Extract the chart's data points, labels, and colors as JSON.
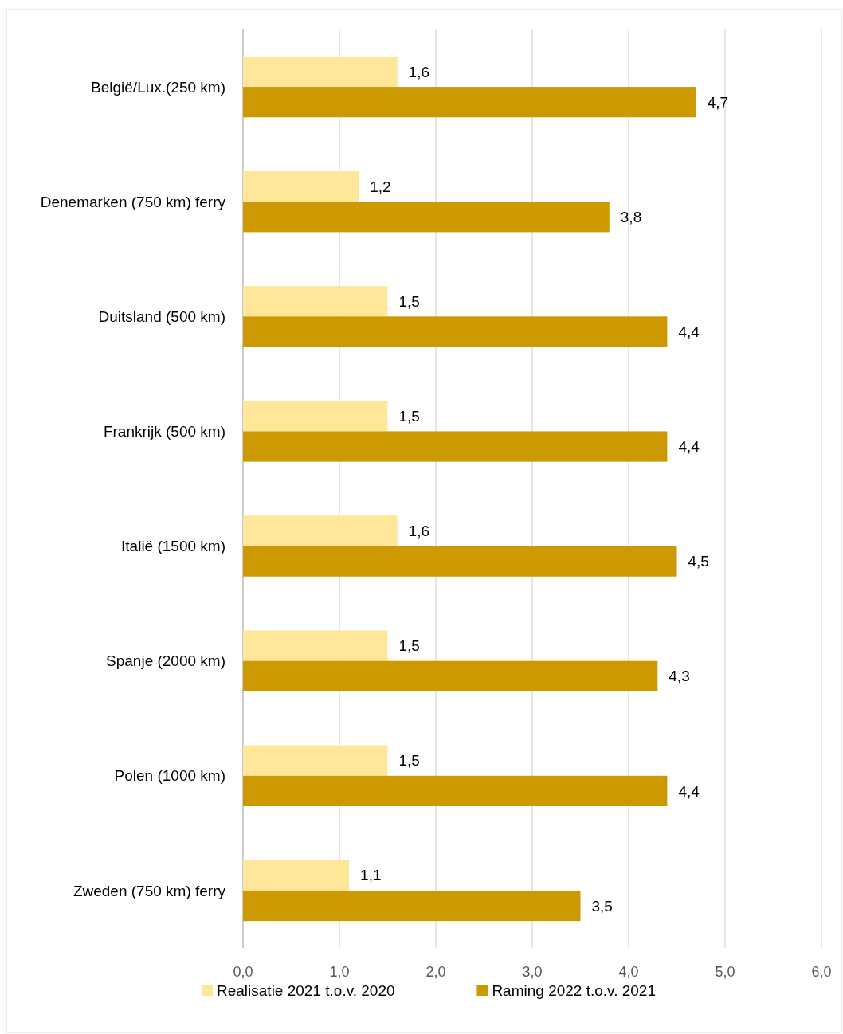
{
  "chart_data": {
    "type": "bar",
    "orientation": "horizontal",
    "categories": [
      "België/Lux.(250 km)",
      "Denemarken (750 km) ferry",
      "Duitsland (500 km)",
      "Frankrijk (500 km)",
      "Italië (1500 km)",
      "Spanje (2000 km)",
      "Polen (1000 km)",
      "Zweden (750 km) ferry"
    ],
    "series": [
      {
        "name": "Realisatie 2021 t.o.v. 2020",
        "color": "#ffe699",
        "values": [
          1.6,
          1.2,
          1.5,
          1.5,
          1.6,
          1.5,
          1.5,
          1.1
        ],
        "value_labels": [
          "1,6",
          "1,2",
          "1,5",
          "1,5",
          "1,6",
          "1,5",
          "1,5",
          "1,1"
        ]
      },
      {
        "name": "Raming 2022 t.o.v. 2021",
        "color": "#cc9900",
        "values": [
          4.7,
          3.8,
          4.4,
          4.4,
          4.5,
          4.3,
          4.4,
          3.5
        ],
        "value_labels": [
          "4,7",
          "3,8",
          "4,4",
          "4,4",
          "4,5",
          "4,3",
          "4,4",
          "3,5"
        ]
      }
    ],
    "xlim": [
      0,
      6
    ],
    "xticks": [
      {
        "value": 0,
        "label": "0,0"
      },
      {
        "value": 1,
        "label": "1,0"
      },
      {
        "value": 2,
        "label": "2,0"
      },
      {
        "value": 3,
        "label": "3,0"
      },
      {
        "value": 4,
        "label": "4,0"
      },
      {
        "value": 5,
        "label": "5,0"
      },
      {
        "value": 6,
        "label": "6,0"
      }
    ],
    "grid": "x",
    "legend": "bottom"
  }
}
